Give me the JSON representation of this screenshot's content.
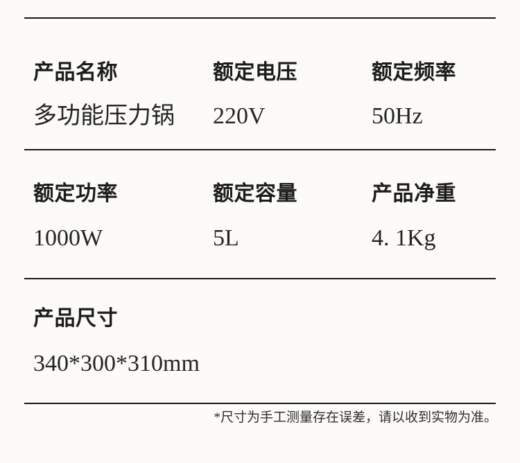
{
  "page": {
    "background_color": "#fcfbf7",
    "rule_color": "#161616",
    "label_color": "#1c1c1c",
    "value_color": "#242424"
  },
  "spec_table": {
    "rows": [
      {
        "cells": [
          {
            "label": "产品名称",
            "value": "多功能压力锅"
          },
          {
            "label": "额定电压",
            "value": "220V"
          },
          {
            "label": "额定频率",
            "value": "50Hz"
          }
        ]
      },
      {
        "cells": [
          {
            "label": "额定功率",
            "value": "1000W"
          },
          {
            "label": "额定容量",
            "value": "5L"
          },
          {
            "label": "产品净重",
            "value": "4. 1Kg"
          }
        ]
      },
      {
        "cells": [
          {
            "label": "产品尺寸",
            "value": "340*300*310mm"
          }
        ]
      }
    ]
  },
  "footnote": "*尺寸为手工测量存在误差，请以收到实物为准。"
}
